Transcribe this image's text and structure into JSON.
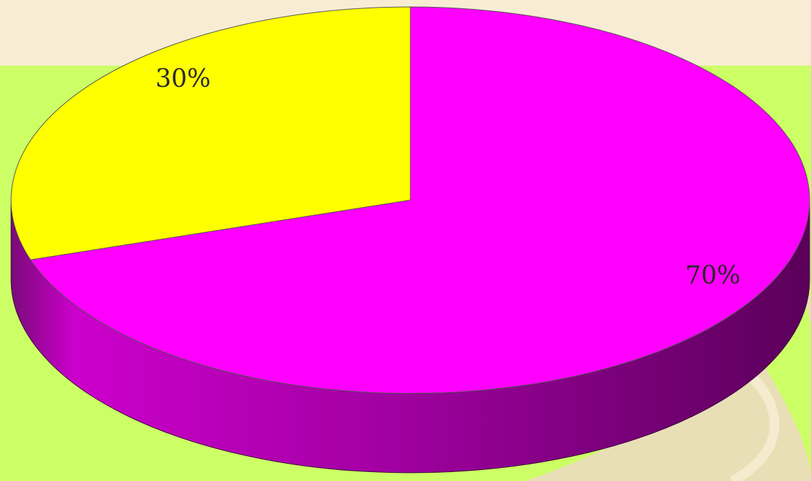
{
  "chart_data": {
    "type": "pie",
    "style": "3d",
    "slices": [
      {
        "label": "30%",
        "value": 30,
        "color": "#ffff00"
      },
      {
        "label": "70%",
        "value": 70,
        "color": "#ff00ff"
      }
    ]
  },
  "colors": {
    "background": "#ccff66",
    "top_band": "#f8edd4",
    "slice_30": "#ffff00",
    "slice_70": "#ff00ff",
    "side_light": "#cc00cc",
    "side_dark": "#5c005c"
  }
}
